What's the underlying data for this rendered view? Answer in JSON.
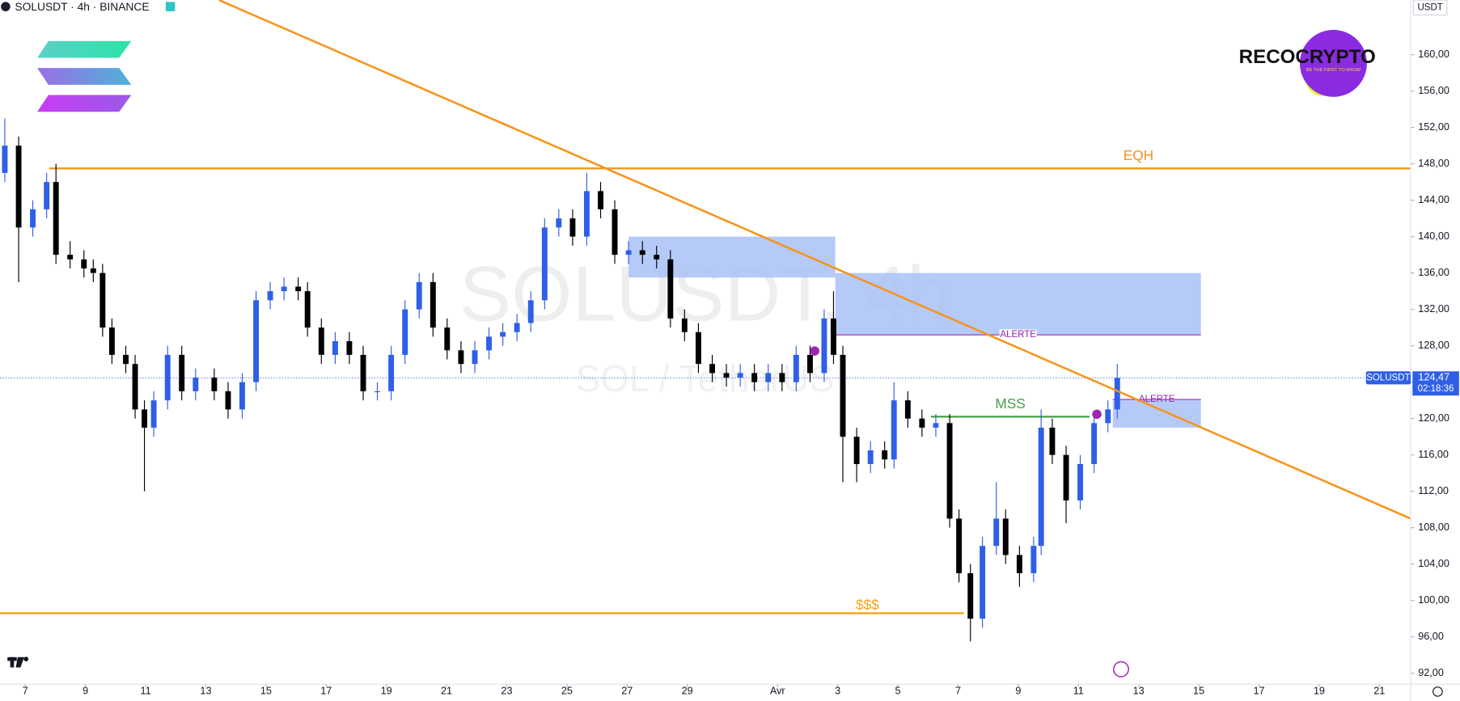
{
  "chart_data": {
    "type": "candlestick",
    "title": "SOLUSDT · 4h · BINANCE",
    "watermark": "SOLUSDT, 4h",
    "watermark_subtitle": "SOL / TetherUS",
    "currency": "USDT",
    "brand": "RECOCRYPTO",
    "brand_tagline": "BE THE FIRST TO KNOW",
    "up_color": "#2f5fe6",
    "down_color": "#000000",
    "x": [
      -0.68,
      -0.22,
      0.25,
      0.71,
      1.02,
      1.49,
      1.95,
      2.26,
      2.57,
      2.88,
      3.34,
      3.65,
      3.96,
      4.27,
      4.73,
      5.2,
      5.66,
      6.28,
      6.74,
      7.21,
      7.67,
      8.14,
      8.6,
      9.07,
      9.38,
      9.84,
      10.3,
      10.77,
      11.23,
      11.7,
      12.16,
      12.62,
      13.09,
      13.55,
      14.02,
      14.48,
      14.94,
      15.41,
      15.87,
      16.34,
      16.8,
      17.26,
      17.73,
      18.19,
      18.66,
      19.12,
      19.59,
      20.05,
      20.51,
      20.98,
      21.44,
      21.91,
      22.37,
      22.83,
      23.3,
      23.76,
      24.23,
      24.69,
      25.15,
      25.62,
      26.08,
      26.55,
      26.86,
      27.17,
      27.63,
      28.09,
      28.56,
      28.87,
      29.33,
      29.8,
      30.26,
      30.72,
      31.03,
      31.41,
      31.81,
      32.27,
      32.58,
      33.04,
      33.51,
      33.76,
      34.13,
      34.59,
      35.06,
      35.52,
      35.98,
      36.29
    ],
    "open": [
      147,
      150,
      141,
      143,
      146,
      138,
      137.5,
      136.5,
      136,
      130,
      127,
      126,
      121,
      119,
      122,
      127,
      123,
      124.5,
      123,
      121,
      124,
      133,
      134,
      134.5,
      134,
      130,
      127,
      128.5,
      127,
      123,
      123,
      127,
      132,
      135,
      130,
      127.5,
      126,
      127.5,
      129,
      129.5,
      130.5,
      133,
      141,
      142,
      140,
      145,
      143,
      138,
      138.5,
      138,
      137.5,
      131,
      129.5,
      126,
      125,
      124.5,
      125,
      124,
      125,
      124,
      127,
      125,
      131,
      127,
      118,
      115,
      116.5,
      115.5,
      122,
      120,
      119,
      119.5,
      109,
      103,
      98,
      106,
      109,
      105,
      103,
      106,
      119,
      116,
      111,
      115,
      119.5,
      121
    ],
    "high": [
      153,
      151,
      144,
      147,
      148,
      139.5,
      138.5,
      137.5,
      137,
      131,
      128,
      127,
      122,
      123,
      128,
      128,
      125.5,
      125.5,
      124,
      125,
      134,
      135,
      135.5,
      135.5,
      135,
      131,
      129.5,
      129.5,
      128,
      124,
      128,
      133,
      136,
      136,
      131,
      128.5,
      128.5,
      130,
      130.5,
      131.5,
      134,
      142,
      143,
      143,
      147,
      146,
      144,
      139.5,
      139.5,
      139,
      138.5,
      132,
      130.5,
      127,
      126,
      126,
      126,
      126,
      126,
      128,
      128,
      132,
      134,
      128,
      119,
      117.5,
      117.5,
      124,
      123,
      121,
      120.5,
      120.5,
      110,
      104,
      107,
      113,
      110,
      106,
      107,
      121,
      120,
      117,
      116,
      120.5,
      122,
      126
    ],
    "low": [
      146,
      135,
      140,
      142,
      137,
      136.5,
      135.5,
      135,
      129,
      126,
      125,
      120,
      112,
      118,
      121,
      122,
      122,
      122,
      120,
      120,
      123,
      132,
      133,
      133,
      129,
      126,
      126,
      126,
      122,
      122,
      122,
      126,
      131,
      129,
      126.5,
      125,
      125,
      126.5,
      128,
      128.5,
      129.5,
      132,
      140,
      139,
      139,
      142,
      137,
      137,
      137,
      136.5,
      130,
      128.5,
      125,
      124,
      123.5,
      123.5,
      123,
      123,
      123,
      123,
      124,
      124,
      126,
      113,
      113,
      114,
      114.5,
      114.5,
      119,
      118,
      118,
      108,
      102,
      95.5,
      97,
      105,
      104,
      101.5,
      102,
      105,
      115,
      108.5,
      110,
      114,
      118.5,
      120
    ],
    "close": [
      150,
      141,
      143,
      146,
      138,
      137.5,
      136.5,
      136,
      130,
      127,
      126,
      121,
      119,
      122,
      127,
      123,
      124.5,
      123,
      121,
      124,
      133,
      134,
      134.5,
      134,
      130,
      127,
      128.5,
      127,
      123,
      123,
      127,
      132,
      135,
      130,
      127.5,
      126,
      127.5,
      129,
      129.5,
      130.5,
      133,
      141,
      142,
      140,
      145,
      143,
      138,
      138.5,
      138,
      137.5,
      131,
      129.5,
      126,
      125,
      124.5,
      125,
      124,
      125,
      124,
      127,
      125,
      131,
      127,
      118,
      115,
      116.5,
      115.5,
      122,
      120,
      119,
      119.5,
      109,
      103,
      98,
      106,
      109,
      105,
      103,
      106,
      119,
      116,
      111,
      115,
      119.5,
      121,
      124.47
    ],
    "xlim": [
      -0.84,
      46.04
    ],
    "ylim": [
      90.8,
      166
    ],
    "yticks": [
      {
        "value": 92,
        "label": "92,00"
      },
      {
        "value": 96,
        "label": "96,00"
      },
      {
        "value": 100,
        "label": "100,00"
      },
      {
        "value": 104,
        "label": "104,00"
      },
      {
        "value": 108,
        "label": "108,00"
      },
      {
        "value": 112,
        "label": "112,00"
      },
      {
        "value": 116,
        "label": "116,00"
      },
      {
        "value": 120,
        "label": "120,00"
      },
      {
        "value": 124,
        "label": "124,00"
      },
      {
        "value": 128,
        "label": "128,00"
      },
      {
        "value": 132,
        "label": "132,00"
      },
      {
        "value": 136,
        "label": "136,00"
      },
      {
        "value": 140,
        "label": "140,00"
      },
      {
        "value": 144,
        "label": "144,00"
      },
      {
        "value": 148,
        "label": "148,00"
      },
      {
        "value": 152,
        "label": "152,00"
      },
      {
        "value": 156,
        "label": "156,00"
      },
      {
        "value": 160,
        "label": "160,00"
      }
    ],
    "xticks": [
      {
        "value": 0,
        "label": "7"
      },
      {
        "value": 2,
        "label": "9"
      },
      {
        "value": 4,
        "label": "11"
      },
      {
        "value": 6,
        "label": "13"
      },
      {
        "value": 8,
        "label": "15"
      },
      {
        "value": 10,
        "label": "17"
      },
      {
        "value": 12,
        "label": "19"
      },
      {
        "value": 14,
        "label": "21"
      },
      {
        "value": 16,
        "label": "23"
      },
      {
        "value": 18,
        "label": "25"
      },
      {
        "value": 20,
        "label": "27"
      },
      {
        "value": 22,
        "label": "29"
      },
      {
        "value": 25,
        "label": "Avr"
      },
      {
        "value": 27,
        "label": "3"
      },
      {
        "value": 29,
        "label": "5"
      },
      {
        "value": 31,
        "label": "7"
      },
      {
        "value": 33,
        "label": "9"
      },
      {
        "value": 35,
        "label": "11"
      },
      {
        "value": 37,
        "label": "13"
      },
      {
        "value": 39,
        "label": "15"
      },
      {
        "value": 41,
        "label": "17"
      },
      {
        "value": 43,
        "label": "19"
      },
      {
        "value": 45,
        "label": "21"
      }
    ],
    "zones": [
      {
        "x": [
          20.05,
          26.92
        ],
        "y": [
          135.5,
          140
        ],
        "color": "#a9c1f7"
      },
      {
        "x": [
          26.92,
          39.07
        ],
        "y": [
          129.2,
          136
        ],
        "color": "#a9c1f7"
      },
      {
        "x": [
          36.14,
          39.07
        ],
        "y": [
          119,
          122.1
        ],
        "color": "#a9c1f7"
      }
    ],
    "levels": [
      {
        "label": "EQH",
        "x": [
          0.8,
          46.04
        ],
        "y": 147.5,
        "color": "#f7931a"
      },
      {
        "label": "MSS",
        "x": [
          30.1,
          35.37
        ],
        "y": 120.2,
        "color": "#43a047"
      },
      {
        "label": "$$$",
        "x": [
          -0.84,
          31.19
        ],
        "y": 98.6,
        "color": "#f7a21a"
      },
      {
        "label": "ALERTE",
        "x": [
          26.92,
          39.07
        ],
        "y": 129.2,
        "color": "#9c27b0"
      },
      {
        "label": "ALERTE",
        "x": [
          36.14,
          39.07
        ],
        "y": 122.1,
        "color": "#9c27b0"
      }
    ],
    "trendline": {
      "x": [
        6.44,
        46.04
      ],
      "y": [
        166,
        109
      ],
      "color": "#f7931a"
    },
    "last_price": {
      "value": 124.47,
      "label": "124,47",
      "countdown": "02:18:36",
      "symbol": "SOLUSDT"
    }
  }
}
